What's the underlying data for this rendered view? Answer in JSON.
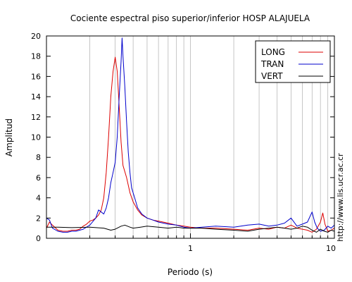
{
  "chart_data": {
    "type": "line",
    "title": "Cociente espectral piso superior/inferior  HOSP ALAJUELA",
    "xlabel": "Periodo (s)",
    "ylabel": "Amplitud",
    "x_scale": "log",
    "xlim": [
      0.1,
      10
    ],
    "ylim": [
      0,
      20
    ],
    "x_tick_labels": [
      {
        "value": 1,
        "label": "1"
      },
      {
        "value": 10,
        "label": "10"
      }
    ],
    "y_ticks": [
      0,
      2,
      4,
      6,
      8,
      10,
      12,
      14,
      16,
      18,
      20
    ],
    "grid": "vertical minor and major lines on x axis",
    "legend_position": "top-right",
    "side_text": "http://www.lis.ucr.ac.cr",
    "series": [
      {
        "name": "LONG",
        "color": "#dd0000",
        "points": [
          [
            0.1,
            1.0
          ],
          [
            0.105,
            1.6
          ],
          [
            0.11,
            1.3
          ],
          [
            0.12,
            0.8
          ],
          [
            0.13,
            0.7
          ],
          [
            0.14,
            0.7
          ],
          [
            0.15,
            0.8
          ],
          [
            0.16,
            0.8
          ],
          [
            0.17,
            0.9
          ],
          [
            0.18,
            1.2
          ],
          [
            0.19,
            1.4
          ],
          [
            0.2,
            1.7
          ],
          [
            0.21,
            1.8
          ],
          [
            0.22,
            2.0
          ],
          [
            0.23,
            2.3
          ],
          [
            0.24,
            2.8
          ],
          [
            0.25,
            4.0
          ],
          [
            0.26,
            6.5
          ],
          [
            0.27,
            10.0
          ],
          [
            0.28,
            14.0
          ],
          [
            0.29,
            16.5
          ],
          [
            0.3,
            17.9
          ],
          [
            0.31,
            16.5
          ],
          [
            0.32,
            13.0
          ],
          [
            0.33,
            9.5
          ],
          [
            0.34,
            7.2
          ],
          [
            0.36,
            6.0
          ],
          [
            0.38,
            4.5
          ],
          [
            0.4,
            3.6
          ],
          [
            0.43,
            2.8
          ],
          [
            0.46,
            2.3
          ],
          [
            0.5,
            2.0
          ],
          [
            0.55,
            1.8
          ],
          [
            0.6,
            1.7
          ],
          [
            0.7,
            1.5
          ],
          [
            0.8,
            1.3
          ],
          [
            0.9,
            1.2
          ],
          [
            1.0,
            1.1
          ],
          [
            1.2,
            1.0
          ],
          [
            1.5,
            1.0
          ],
          [
            2.0,
            0.9
          ],
          [
            2.5,
            0.8
          ],
          [
            3.0,
            1.0
          ],
          [
            3.5,
            0.9
          ],
          [
            4.0,
            1.1
          ],
          [
            4.5,
            1.0
          ],
          [
            5.0,
            1.3
          ],
          [
            5.5,
            1.0
          ],
          [
            6.0,
            0.9
          ],
          [
            6.5,
            0.8
          ],
          [
            7.0,
            0.6
          ],
          [
            7.5,
            0.9
          ],
          [
            8.0,
            1.6
          ],
          [
            8.3,
            2.5
          ],
          [
            8.6,
            1.4
          ],
          [
            9.0,
            0.7
          ],
          [
            9.5,
            0.8
          ],
          [
            10.0,
            1.0
          ]
        ]
      },
      {
        "name": "TRAN",
        "color": "#0000cc",
        "points": [
          [
            0.1,
            2.0
          ],
          [
            0.105,
            1.8
          ],
          [
            0.11,
            1.0
          ],
          [
            0.12,
            0.7
          ],
          [
            0.13,
            0.6
          ],
          [
            0.14,
            0.6
          ],
          [
            0.15,
            0.7
          ],
          [
            0.16,
            0.7
          ],
          [
            0.18,
            0.9
          ],
          [
            0.2,
            1.3
          ],
          [
            0.22,
            2.0
          ],
          [
            0.23,
            2.8
          ],
          [
            0.24,
            2.6
          ],
          [
            0.25,
            2.4
          ],
          [
            0.26,
            3.0
          ],
          [
            0.27,
            4.0
          ],
          [
            0.28,
            5.5
          ],
          [
            0.29,
            6.5
          ],
          [
            0.3,
            7.5
          ],
          [
            0.31,
            10.0
          ],
          [
            0.32,
            14.0
          ],
          [
            0.33,
            17.5
          ],
          [
            0.335,
            19.8
          ],
          [
            0.34,
            18.0
          ],
          [
            0.35,
            15.0
          ],
          [
            0.36,
            11.5
          ],
          [
            0.37,
            8.5
          ],
          [
            0.38,
            6.5
          ],
          [
            0.39,
            5.0
          ],
          [
            0.41,
            4.0
          ],
          [
            0.43,
            3.0
          ],
          [
            0.46,
            2.4
          ],
          [
            0.5,
            2.0
          ],
          [
            0.55,
            1.8
          ],
          [
            0.6,
            1.6
          ],
          [
            0.7,
            1.4
          ],
          [
            0.8,
            1.3
          ],
          [
            0.9,
            1.1
          ],
          [
            1.0,
            1.0
          ],
          [
            1.2,
            1.1
          ],
          [
            1.5,
            1.2
          ],
          [
            2.0,
            1.1
          ],
          [
            2.5,
            1.3
          ],
          [
            3.0,
            1.4
          ],
          [
            3.5,
            1.2
          ],
          [
            4.0,
            1.3
          ],
          [
            4.5,
            1.5
          ],
          [
            5.0,
            2.0
          ],
          [
            5.5,
            1.2
          ],
          [
            6.0,
            1.4
          ],
          [
            6.5,
            1.6
          ],
          [
            7.0,
            2.6
          ],
          [
            7.3,
            1.6
          ],
          [
            7.6,
            1.0
          ],
          [
            8.0,
            0.7
          ],
          [
            8.5,
            0.8
          ],
          [
            9.0,
            1.2
          ],
          [
            9.5,
            1.0
          ],
          [
            10.0,
            1.3
          ]
        ]
      },
      {
        "name": "VERT",
        "color": "#000000",
        "points": [
          [
            0.1,
            1.1
          ],
          [
            0.12,
            1.1
          ],
          [
            0.15,
            1.05
          ],
          [
            0.2,
            1.1
          ],
          [
            0.25,
            1.0
          ],
          [
            0.28,
            0.8
          ],
          [
            0.3,
            0.9
          ],
          [
            0.33,
            1.2
          ],
          [
            0.35,
            1.3
          ],
          [
            0.38,
            1.1
          ],
          [
            0.4,
            1.0
          ],
          [
            0.45,
            1.1
          ],
          [
            0.5,
            1.2
          ],
          [
            0.6,
            1.1
          ],
          [
            0.7,
            1.0
          ],
          [
            0.8,
            1.1
          ],
          [
            0.9,
            1.0
          ],
          [
            1.0,
            1.0
          ],
          [
            1.2,
            1.0
          ],
          [
            1.5,
            0.9
          ],
          [
            2.0,
            0.8
          ],
          [
            2.5,
            0.7
          ],
          [
            3.0,
            0.9
          ],
          [
            3.5,
            1.0
          ],
          [
            4.0,
            1.1
          ],
          [
            4.5,
            1.0
          ],
          [
            5.0,
            0.9
          ],
          [
            5.5,
            1.0
          ],
          [
            6.0,
            1.2
          ],
          [
            6.5,
            1.1
          ],
          [
            7.0,
            0.8
          ],
          [
            7.5,
            0.6
          ],
          [
            8.0,
            0.9
          ],
          [
            8.5,
            0.7
          ],
          [
            9.0,
            0.6
          ],
          [
            9.5,
            0.8
          ],
          [
            10.0,
            0.7
          ]
        ]
      }
    ]
  }
}
